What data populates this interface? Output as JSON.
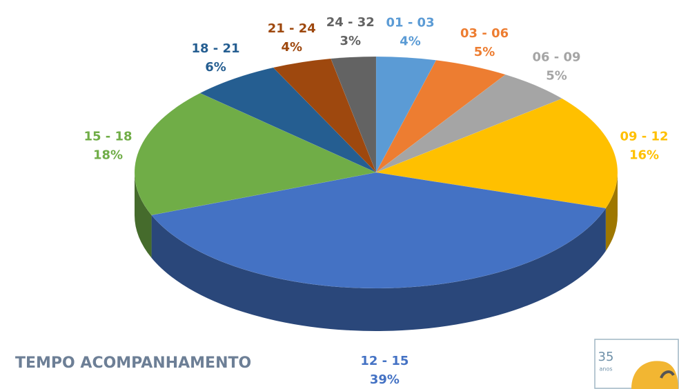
{
  "chart_data": {
    "type": "pie",
    "title": "TEMPO ACOMPANHAMENTO",
    "categories": [
      "01 - 03",
      "03 - 06",
      "06 - 09",
      "09 - 12",
      "12 - 15",
      "15 - 18",
      "18 - 21",
      "21 - 24",
      "24 - 32"
    ],
    "values": [
      4,
      5,
      5,
      16,
      39,
      18,
      6,
      4,
      3
    ],
    "value_labels": [
      "4%",
      "5%",
      "5%",
      "16%",
      "39%",
      "18%",
      "6%",
      "4%",
      "3%"
    ],
    "colors": [
      "#5b9bd5",
      "#ed7d31",
      "#a5a5a5",
      "#ffc000",
      "#4472c4",
      "#70ad47",
      "#255e91",
      "#9e480e",
      "#636363"
    ]
  },
  "logo": {
    "number": "35",
    "text": "anos"
  }
}
